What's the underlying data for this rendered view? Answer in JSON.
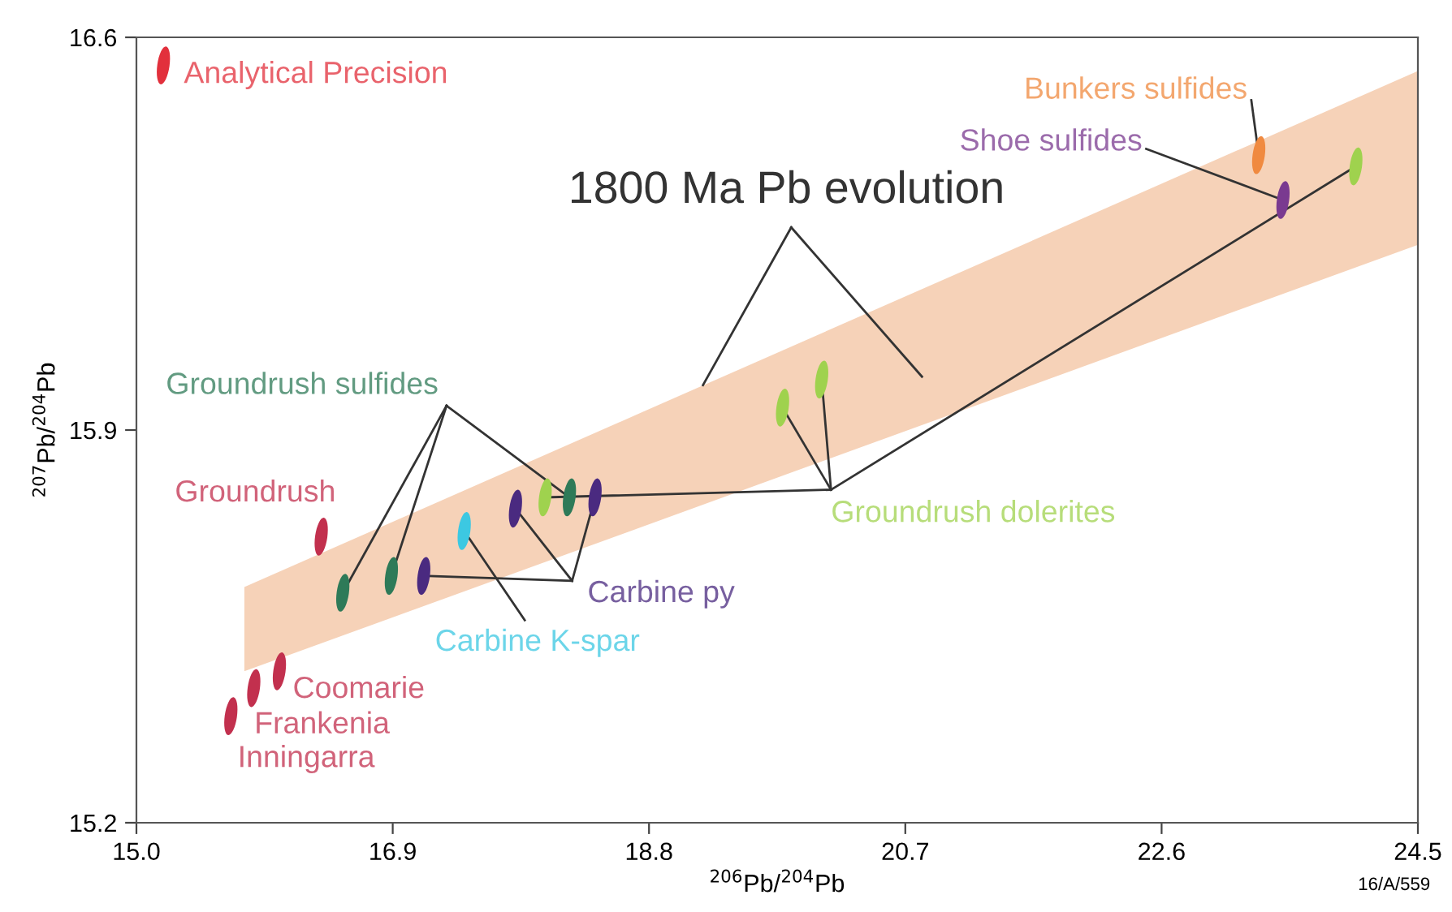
{
  "chart_data": {
    "type": "scatter",
    "xlabel": "$^{206}$Pb/$^{204}$Pb",
    "ylabel": "$^{207}$Pb/$^{204}$Pb",
    "xlim": [
      15.0,
      24.5
    ],
    "ylim": [
      15.2,
      16.6
    ],
    "xticks": [
      {
        "value": 15.0,
        "label": "15.0"
      },
      16.9,
      18.8,
      20.7,
      22.6,
      24.5
    ],
    "yticks": [
      15.2,
      15.9,
      16.6
    ],
    "grid": false,
    "legend": false,
    "annotations": [
      {
        "text": "1800 Ma Pb evolution",
        "x": 19.2,
        "y": 15.98
      },
      "16/A/559"
    ],
    "series": [
      {
        "type": "area",
        "color": "#f6d2b8",
        "x": [
          15.8,
          24.5
        ],
        "values": [
          null,
          null
        ],
        "lower": [
          15.47,
          16.23
        ],
        "upper": [
          15.62,
          16.54
        ]
      },
      {
        "name": "Analytical Precision",
        "color": "#e2303c",
        "x": [
          15.2
        ],
        "values": [
          16.55
        ]
      },
      {
        "name": "Groundrush",
        "color": "#c2304e",
        "x": [
          16.37
        ],
        "values": [
          15.71
        ]
      },
      {
        "name": "Coomarie",
        "color": "#c2304e",
        "x": [
          16.06
        ],
        "values": [
          15.47
        ]
      },
      {
        "name": "Frankenia",
        "color": "#c2304e",
        "x": [
          15.87
        ],
        "values": [
          15.44
        ]
      },
      {
        "name": "Inningarra",
        "color": "#c2304e",
        "x": [
          15.7
        ],
        "values": [
          15.39
        ]
      },
      {
        "name": "Groundrush sulfides",
        "color": "#2e7a58",
        "x": [
          16.53,
          16.89,
          18.21
        ],
        "values": [
          15.61,
          15.64,
          15.78
        ]
      },
      {
        "name": "Carbine py",
        "color": "#4a2a80",
        "x": [
          17.13,
          17.81,
          18.4
        ],
        "values": [
          15.64,
          15.76,
          15.78
        ]
      },
      {
        "name": "Carbine K-spar",
        "color": "#3cc8e2",
        "x": [
          17.43
        ],
        "values": [
          15.72
        ]
      },
      {
        "name": "Groundrush dolerites",
        "color": "#9fd24e",
        "x": [
          18.03,
          19.79,
          20.08,
          24.04
        ],
        "values": [
          15.78,
          15.94,
          15.99,
          16.37
        ]
      },
      {
        "name": "Bunkers sulfides",
        "color": "#f08a40",
        "x": [
          23.32
        ],
        "values": [
          16.39
        ]
      },
      {
        "name": "Shoe sulfides",
        "color": "#7a3a90",
        "x": [
          23.5
        ],
        "values": [
          16.31
        ]
      }
    ]
  }
}
